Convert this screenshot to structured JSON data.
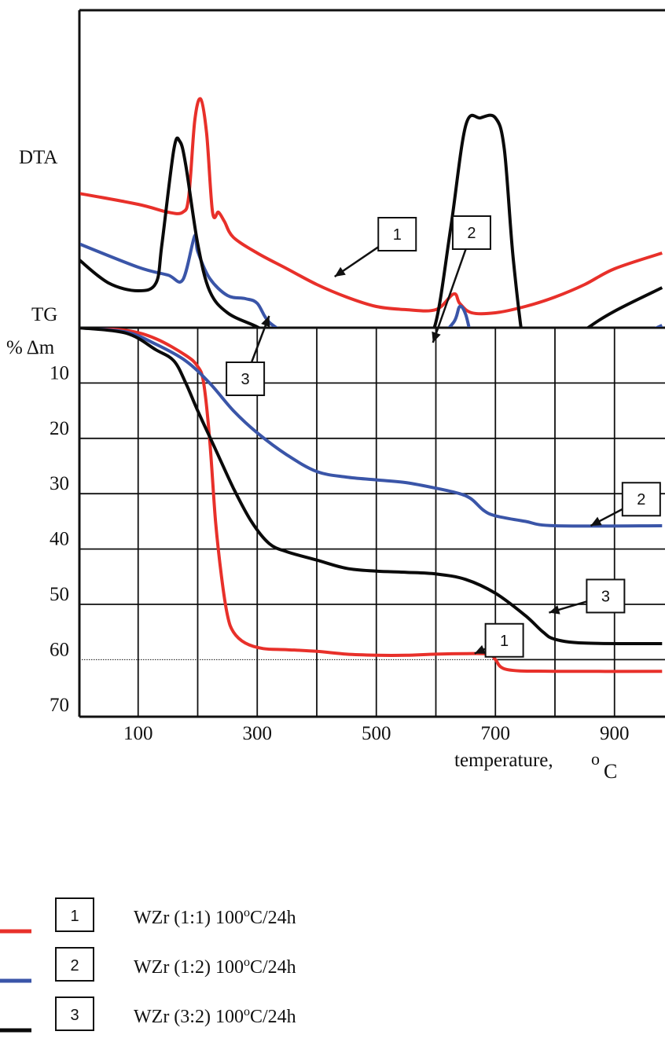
{
  "chart_data": {
    "type": "line",
    "panels": {
      "dta": {
        "label": "DTA"
      },
      "tg": {
        "label_line1": "TG",
        "label_line2": "% Δm"
      }
    },
    "x_axis": {
      "ticks": [
        100,
        300,
        500,
        700,
        900
      ],
      "label": "temperature,",
      "unit_sup": "o",
      "unit": "C",
      "xlim": [
        0,
        980
      ]
    },
    "tg_axis": {
      "ticks": [
        10,
        20,
        30,
        40,
        50,
        60,
        70
      ],
      "ylim": [
        0,
        70
      ],
      "inverted": true
    },
    "colors": {
      "s1": "#e8302a",
      "s2": "#3a55a8",
      "s3": "#0a0a0a"
    },
    "series": [
      {
        "id": "1",
        "color": "#e8302a",
        "legend": {
          "pre": "WZr (1:1) 100",
          "sup": "o",
          "post": "C/24h"
        },
        "tg": [
          [
            0,
            0
          ],
          [
            80,
            0.5
          ],
          [
            130,
            2
          ],
          [
            180,
            5
          ],
          [
            200,
            7
          ],
          [
            210,
            10
          ],
          [
            220,
            20
          ],
          [
            230,
            35
          ],
          [
            240,
            45
          ],
          [
            250,
            52
          ],
          [
            260,
            55
          ],
          [
            280,
            57
          ],
          [
            310,
            58
          ],
          [
            350,
            58.2
          ],
          [
            400,
            58.5
          ],
          [
            450,
            59
          ],
          [
            500,
            59.2
          ],
          [
            550,
            59.2
          ],
          [
            600,
            59
          ],
          [
            650,
            58.9
          ],
          [
            690,
            59
          ],
          [
            700,
            60
          ],
          [
            720,
            61.8
          ],
          [
            800,
            62.1
          ],
          [
            980,
            62.1
          ]
        ],
        "dta": [
          [
            0,
            0.2
          ],
          [
            100,
            -0.5
          ],
          [
            150,
            -1
          ],
          [
            175,
            -1
          ],
          [
            185,
            0
          ],
          [
            195,
            4.8
          ],
          [
            205,
            6.2
          ],
          [
            215,
            4
          ],
          [
            225,
            -1
          ],
          [
            235,
            -1
          ],
          [
            245,
            -1.6
          ],
          [
            260,
            -2.6
          ],
          [
            300,
            -3.6
          ],
          [
            350,
            -4.6
          ],
          [
            400,
            -5.6
          ],
          [
            450,
            -6.4
          ],
          [
            500,
            -7
          ],
          [
            550,
            -7.2
          ],
          [
            600,
            -7.2
          ],
          [
            630,
            -6.2
          ],
          [
            640,
            -6.8
          ],
          [
            660,
            -7.4
          ],
          [
            700,
            -7.4
          ],
          [
            750,
            -7
          ],
          [
            800,
            -6.4
          ],
          [
            850,
            -5.6
          ],
          [
            900,
            -4.6
          ],
          [
            980,
            -3.6
          ]
        ],
        "tg_pointer": {
          "at": [
            665,
            58.9
          ],
          "box": [
            715,
            56.5
          ]
        },
        "dta_pointer": {
          "at": [
            430,
            -5.1
          ],
          "box": [
            535,
            -2.4
          ]
        }
      },
      {
        "id": "2",
        "color": "#3a55a8",
        "legend": {
          "pre": "WZr  (1:2) 100",
          "sup": "o",
          "post": "C/24h"
        },
        "tg": [
          [
            0,
            0
          ],
          [
            80,
            0.8
          ],
          [
            130,
            3
          ],
          [
            180,
            6
          ],
          [
            220,
            10
          ],
          [
            260,
            15
          ],
          [
            300,
            19
          ],
          [
            350,
            23
          ],
          [
            400,
            26
          ],
          [
            450,
            27
          ],
          [
            500,
            27.5
          ],
          [
            550,
            28
          ],
          [
            600,
            29
          ],
          [
            640,
            30
          ],
          [
            660,
            31
          ],
          [
            680,
            33
          ],
          [
            700,
            34
          ],
          [
            750,
            35
          ],
          [
            800,
            35.8
          ],
          [
            980,
            35.8
          ]
        ],
        "dta": [
          [
            0,
            -3
          ],
          [
            100,
            -4.5
          ],
          [
            150,
            -5
          ],
          [
            175,
            -5.3
          ],
          [
            195,
            -2.5
          ],
          [
            200,
            -3.5
          ],
          [
            220,
            -5.2
          ],
          [
            250,
            -6.3
          ],
          [
            280,
            -6.5
          ],
          [
            300,
            -6.8
          ],
          [
            320,
            -8
          ],
          [
            360,
            -9
          ],
          [
            400,
            -10
          ],
          [
            450,
            -10.3
          ],
          [
            500,
            -10
          ],
          [
            550,
            -9.5
          ],
          [
            600,
            -9
          ],
          [
            630,
            -8
          ],
          [
            640,
            -7
          ],
          [
            650,
            -7.5
          ],
          [
            660,
            -9
          ],
          [
            670,
            -10
          ],
          [
            680,
            -10
          ],
          [
            690,
            -11.4
          ],
          [
            700,
            -11.4
          ],
          [
            720,
            -11
          ],
          [
            740,
            -11.6
          ],
          [
            780,
            -11.5
          ],
          [
            850,
            -10.6
          ],
          [
            900,
            -9.6
          ],
          [
            980,
            -8.2
          ]
        ],
        "tg_pointer": {
          "at": [
            860,
            35.8
          ],
          "box": [
            945,
            31
          ]
        },
        "dta_pointer": {
          "at": [
            595,
            -9.3
          ],
          "box": [
            660,
            -2.3
          ]
        }
      },
      {
        "id": "3",
        "color": "#0a0a0a",
        "legend": {
          "pre": "WZr (3:2) 100",
          "sup": "o",
          "post": "C/24h"
        },
        "tg": [
          [
            0,
            0
          ],
          [
            80,
            1
          ],
          [
            130,
            4
          ],
          [
            160,
            6
          ],
          [
            180,
            10
          ],
          [
            200,
            15
          ],
          [
            230,
            22
          ],
          [
            260,
            29
          ],
          [
            290,
            35
          ],
          [
            320,
            39
          ],
          [
            350,
            40.5
          ],
          [
            400,
            42
          ],
          [
            450,
            43.5
          ],
          [
            500,
            44
          ],
          [
            550,
            44.2
          ],
          [
            600,
            44.5
          ],
          [
            650,
            45.5
          ],
          [
            700,
            48
          ],
          [
            750,
            52
          ],
          [
            780,
            55
          ],
          [
            800,
            56.3
          ],
          [
            850,
            57
          ],
          [
            980,
            57.1
          ]
        ],
        "dta": [
          [
            0,
            -4
          ],
          [
            50,
            -5.5
          ],
          [
            100,
            -6
          ],
          [
            130,
            -5.5
          ],
          [
            140,
            -3
          ],
          [
            160,
            3
          ],
          [
            170,
            3.5
          ],
          [
            180,
            2
          ],
          [
            200,
            -3
          ],
          [
            220,
            -6
          ],
          [
            250,
            -7.4
          ],
          [
            300,
            -8.3
          ],
          [
            350,
            -9.3
          ],
          [
            400,
            -10
          ],
          [
            450,
            -10.3
          ],
          [
            500,
            -10.2
          ],
          [
            550,
            -10
          ],
          [
            575,
            -9.5
          ],
          [
            600,
            -8
          ],
          [
            625,
            -2
          ],
          [
            650,
            4.5
          ],
          [
            675,
            5
          ],
          [
            700,
            5
          ],
          [
            715,
            3
          ],
          [
            730,
            -4
          ],
          [
            750,
            -10
          ],
          [
            770,
            -10.5
          ],
          [
            800,
            -10
          ],
          [
            850,
            -8.5
          ],
          [
            900,
            -7.3
          ],
          [
            980,
            -5.8
          ]
        ],
        "tg_pointer": {
          "at": [
            790,
            51.5
          ],
          "box": [
            885,
            48.5
          ]
        },
        "dta_pointer": {
          "at": [
            320,
            -7.6
          ],
          "box": [
            280,
            -11.6
          ]
        }
      }
    ]
  }
}
